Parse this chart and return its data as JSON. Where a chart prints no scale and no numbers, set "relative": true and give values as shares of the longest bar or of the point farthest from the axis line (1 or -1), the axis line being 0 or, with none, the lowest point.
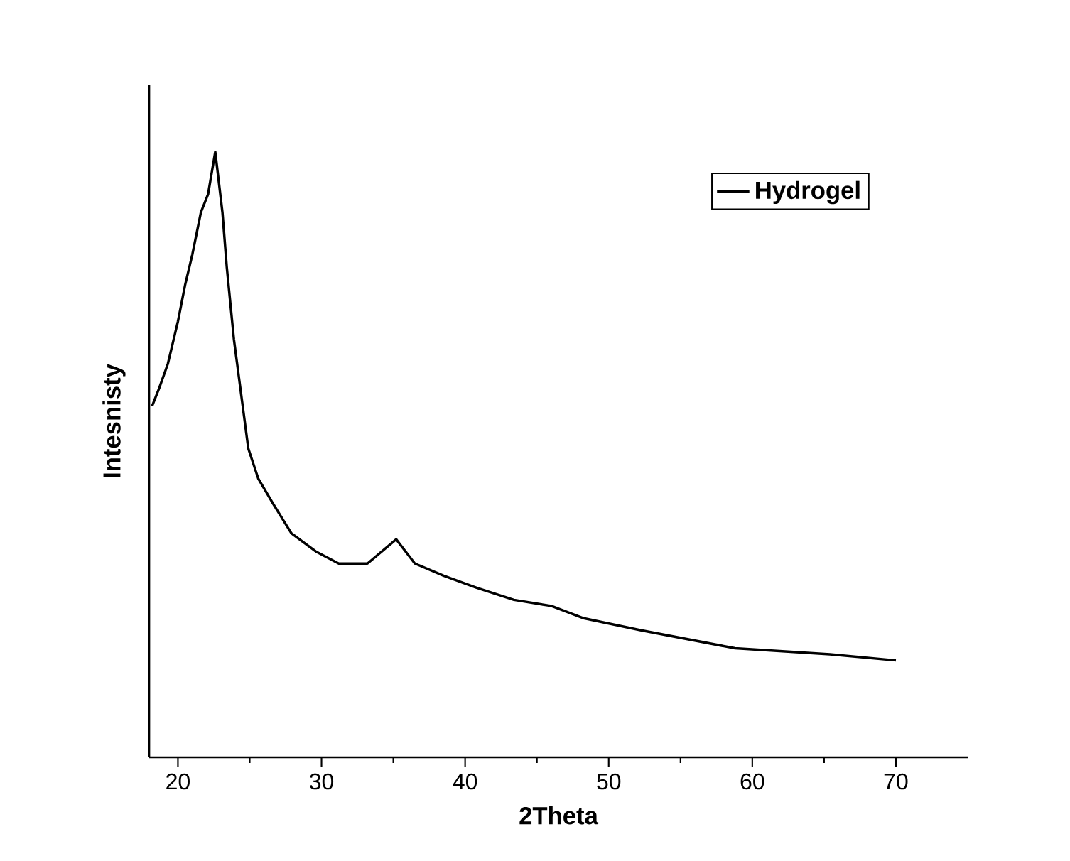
{
  "chart_data": {
    "type": "line",
    "xlabel": "2Theta",
    "ylabel": "Intesnisty",
    "relative": true,
    "legend": "top right",
    "xlim": [
      18,
      75
    ],
    "xticks": [
      20,
      30,
      40,
      50,
      60,
      70
    ],
    "series": [
      {
        "name": "Hydrogel",
        "color": "#000000",
        "x": [
          18.2,
          18.7,
          19.3,
          20.0,
          20.5,
          21.0,
          21.6,
          22.1,
          22.6,
          23.1,
          23.4,
          23.9,
          24.4,
          24.9,
          25.6,
          26.6,
          27.9,
          29.6,
          31.2,
          33.2,
          35.2,
          36.5,
          38.5,
          40.8,
          43.4,
          46.0,
          48.2,
          52.2,
          58.8,
          65.4,
          70.0
        ],
        "values": [
          0.58,
          0.61,
          0.65,
          0.72,
          0.78,
          0.83,
          0.9,
          0.93,
          1.0,
          0.9,
          0.81,
          0.69,
          0.6,
          0.51,
          0.46,
          0.42,
          0.37,
          0.34,
          0.32,
          0.32,
          0.36,
          0.32,
          0.3,
          0.28,
          0.26,
          0.25,
          0.23,
          0.21,
          0.18,
          0.17,
          0.16
        ]
      }
    ]
  }
}
